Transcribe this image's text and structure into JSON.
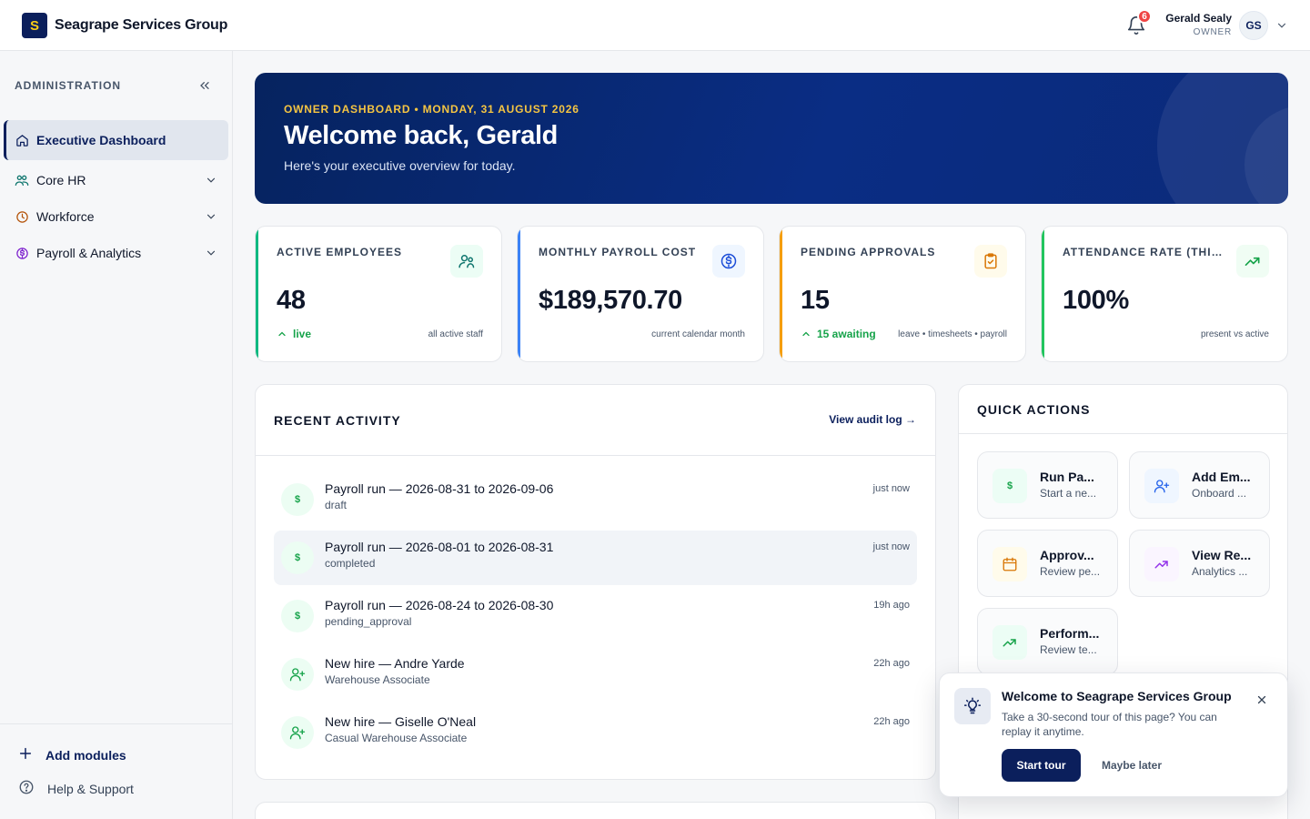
{
  "brand": {
    "logo_letter": "S",
    "name": "Seagrape Services Group"
  },
  "header": {
    "notifications_count": "6",
    "user_name": "Gerald Sealy",
    "user_role": "OWNER",
    "user_initials": "GS"
  },
  "sidebar": {
    "heading": "ADMINISTRATION",
    "items": [
      {
        "label": "Executive Dashboard",
        "icon": "home-icon",
        "active": true
      },
      {
        "label": "Core HR",
        "icon": "people-icon"
      },
      {
        "label": "Workforce",
        "icon": "clock-icon"
      },
      {
        "label": "Payroll & Analytics",
        "icon": "dollar-icon"
      }
    ],
    "add_modules": "Add modules",
    "help": "Help & Support"
  },
  "hero": {
    "eyebrow": "OWNER DASHBOARD • MONDAY, 31 AUGUST 2026",
    "title": "Welcome back, Gerald",
    "subtitle": "Here's your executive overview for today."
  },
  "kpis": [
    {
      "label": "ACTIVE EMPLOYEES",
      "value": "48",
      "trend": "live",
      "note": "all active staff",
      "accent": "#10b981",
      "icon": "users-icon"
    },
    {
      "label": "MONTHLY PAYROLL COST",
      "value": "$189,570.70",
      "trend": "",
      "note": "current calendar month",
      "accent": "#3b82f6",
      "icon": "dollar-circle-icon"
    },
    {
      "label": "PENDING APPROVALS",
      "value": "15",
      "trend": "15 awaiting",
      "note": "leave • timesheets • payroll",
      "accent": "#f59e0b",
      "icon": "clipboard-icon"
    },
    {
      "label": "ATTENDANCE RATE (THIS ...",
      "value": "100%",
      "trend": "",
      "note": "present vs active",
      "accent": "#22c55e",
      "icon": "trending-up-icon"
    }
  ],
  "activity": {
    "title": "RECENT ACTIVITY",
    "link": "View audit log →",
    "rows": [
      {
        "icon": "$",
        "title": "Payroll run — 2026-08-31 to 2026-09-06",
        "sub": "draft",
        "time": "just now"
      },
      {
        "icon": "$",
        "title": "Payroll run — 2026-08-01 to 2026-08-31",
        "sub": "completed",
        "time": "just now"
      },
      {
        "icon": "$",
        "title": "Payroll run — 2026-08-24 to 2026-08-30",
        "sub": "pending_approval",
        "time": "19h ago"
      },
      {
        "icon": "user-plus",
        "title": "New hire — Andre Yarde",
        "sub": "Warehouse Associate",
        "time": "22h ago"
      },
      {
        "icon": "user-plus",
        "title": "New hire — Giselle O'Neal",
        "sub": "Casual Warehouse Associate",
        "time": "22h ago"
      }
    ]
  },
  "quick_actions": {
    "title": "QUICK ACTIONS",
    "tiles": [
      {
        "title": "Run Pa...",
        "sub": "Start a ne...",
        "icon": "dollar-icon"
      },
      {
        "title": "Add Em...",
        "sub": "Onboard ...",
        "icon": "user-plus-icon"
      },
      {
        "title": "Approv...",
        "sub": "Review pe...",
        "icon": "calendar-icon"
      },
      {
        "title": "View Re...",
        "sub": "Analytics ...",
        "icon": "trending-up-icon"
      },
      {
        "title": "Perform...",
        "sub": "Review te...",
        "icon": "trending-up-icon"
      }
    ]
  },
  "tour": {
    "title": "Welcome to Seagrape Services Group",
    "text": "Take a 30-second tour of this page? You can replay it anytime.",
    "start": "Start tour",
    "later": "Maybe later"
  },
  "colors": {
    "brand_navy": "#0b1f5c",
    "accent_gold": "#f5c542",
    "positive": "#16a34a"
  }
}
